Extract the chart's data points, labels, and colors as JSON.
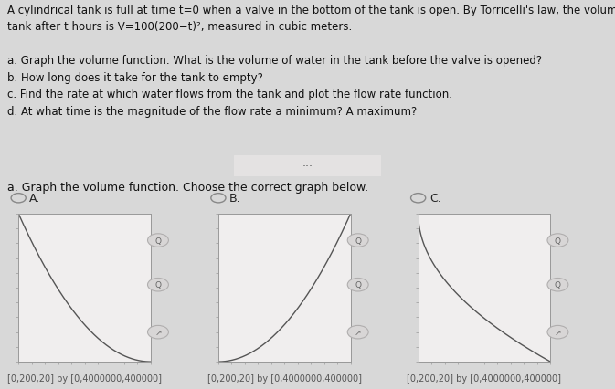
{
  "bg_color": "#d8d8d8",
  "header_bg": "#e8e6e6",
  "graph_bg": "#f0eeee",
  "curve_color": "#555555",
  "header_line1": "A cylindrical tank is full at time t=0 when a valve in the bottom of the tank is open. By Torricelli's law, the volume of water in the",
  "header_line2": "tank after t hours is V=100(200−t)², measured in cubic meters.",
  "question_a": "a. Graph the volume function. What is the volume of water in the tank before the valve is opened?",
  "question_b": "b. How long does it take for the tank to empty?",
  "question_c": "c. Find the rate at which water flows from the tank and plot the flow rate function.",
  "question_d": "d. At what time is the magnitude of the flow rate a minimum? A maximum?",
  "answer_prompt": "a. Graph the volume function. Choose the correct graph below.",
  "options": [
    "A.",
    "B.",
    "C."
  ],
  "axis_label": "[0,200,20] by [0,4000000,400000]",
  "xmin": 0,
  "xmax": 200,
  "xstep": 20,
  "ymin": 0,
  "ymax": 4000000,
  "ystep": 400000,
  "radio_size": 9,
  "option_fontsize": 9,
  "label_fontsize": 7,
  "header_fontsize": 8.5,
  "prompt_fontsize": 9
}
